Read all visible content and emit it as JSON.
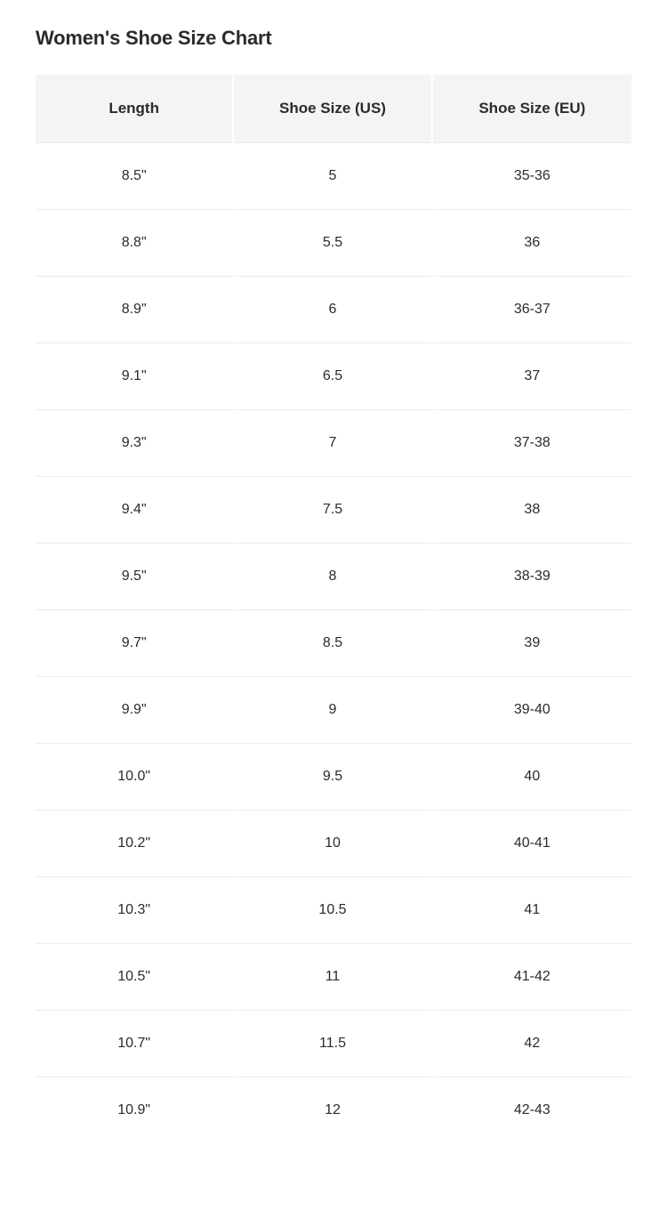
{
  "title": "Women's Shoe Size Chart",
  "table": {
    "columns": [
      "Length",
      "Shoe Size (US)",
      "Shoe Size (EU)"
    ],
    "rows": [
      [
        "8.5\"",
        "5",
        "35-36"
      ],
      [
        "8.8\"",
        "5.5",
        "36"
      ],
      [
        "8.9\"",
        "6",
        "36-37"
      ],
      [
        "9.1\"",
        "6.5",
        "37"
      ],
      [
        "9.3\"",
        "7",
        "37-38"
      ],
      [
        "9.4\"",
        "7.5",
        "38"
      ],
      [
        "9.5\"",
        "8",
        "38-39"
      ],
      [
        "9.7\"",
        "8.5",
        "39"
      ],
      [
        "9.9\"",
        "9",
        "39-40"
      ],
      [
        "10.0\"",
        "9.5",
        "40"
      ],
      [
        "10.2\"",
        "10",
        "40-41"
      ],
      [
        "10.3\"",
        "10.5",
        "41"
      ],
      [
        "10.5\"",
        "11",
        "41-42"
      ],
      [
        "10.7\"",
        "11.5",
        "42"
      ],
      [
        "10.9\"",
        "12",
        "42-43"
      ]
    ],
    "header_bg_color": "#f4f4f4",
    "row_border_color": "#ececec",
    "cell_divider_color": "#ffffff",
    "text_color": "#2b2b2b",
    "background_color": "#ffffff",
    "header_fontsize": 17,
    "cell_fontsize": 16,
    "title_fontsize": 22,
    "cell_padding_v": 28,
    "column_count": 3
  }
}
